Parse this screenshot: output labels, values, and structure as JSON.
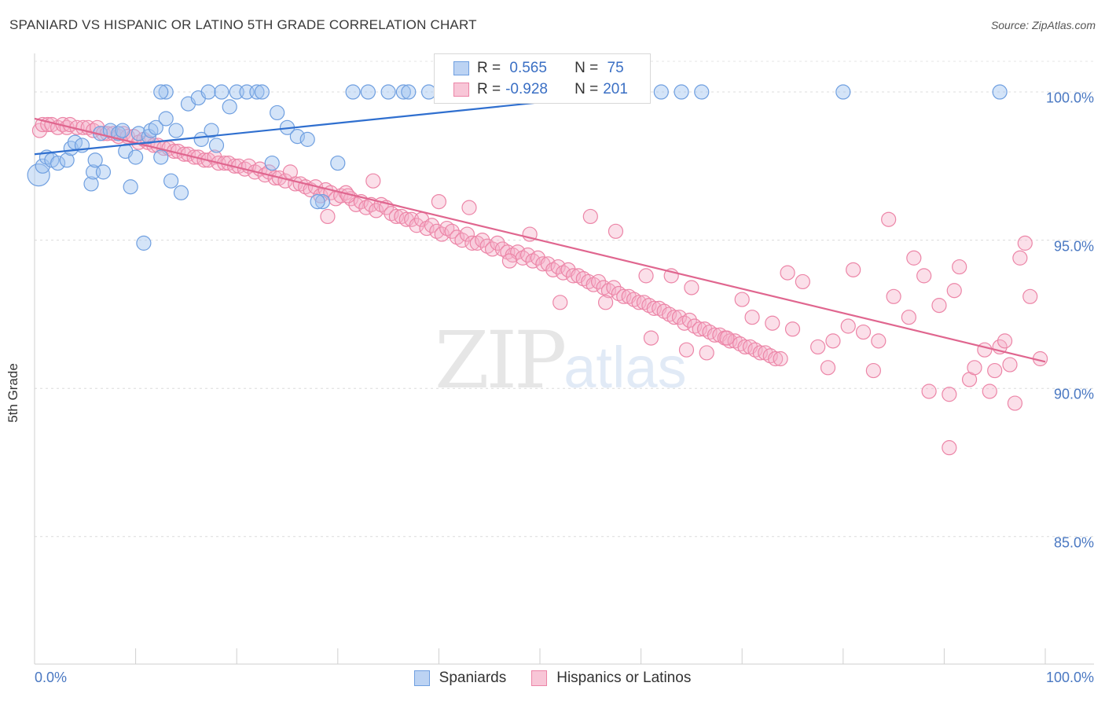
{
  "title": "SPANIARD VS HISPANIC OR LATINO 5TH GRADE CORRELATION CHART",
  "source": "Source: ZipAtlas.com",
  "watermark": {
    "part1": "ZIP",
    "part2": "atlas"
  },
  "legend_top": {
    "rows": [
      {
        "r_label": "R =",
        "r_value": " 0.565",
        "n_label": "N =",
        "n_value": " 75",
        "color": "#6f9fe0",
        "fill": "#bcd3f3"
      },
      {
        "r_label": "R =",
        "r_value": "-0.928",
        "n_label": "N =",
        "n_value": "201",
        "color": "#ec85a7",
        "fill": "#f8c6d7"
      }
    ]
  },
  "legend_bottom": {
    "series1": "Spaniards",
    "series2": "Hispanics or Latinos"
  },
  "chart_data": {
    "type": "scatter",
    "title": "SPANIARD VS HISPANIC OR LATINO 5TH GRADE CORRELATION CHART",
    "xlabel": "",
    "ylabel": "5th Grade",
    "xlim": [
      0,
      100
    ],
    "ylim": [
      80.7,
      101.3
    ],
    "x_ticks_labels": [
      "0.0%",
      "100.0%"
    ],
    "y_ticks": [
      85,
      90,
      95,
      100
    ],
    "y_ticks_labels": [
      "85.0%",
      "90.0%",
      "95.0%",
      "100.0%"
    ],
    "grid": "horizontal dashed",
    "series": [
      {
        "name": "Spaniards",
        "color": "#6f9fe0",
        "fill": "rgba(160,195,240,0.45)",
        "trend": {
          "x": [
            0,
            60
          ],
          "y": [
            97.9,
            100.0
          ]
        },
        "points": [
          [
            0.4,
            97.2,
            14
          ],
          [
            0.8,
            97.5,
            9
          ],
          [
            1.2,
            97.8,
            9
          ],
          [
            1.7,
            97.7,
            9
          ],
          [
            2.3,
            97.6,
            9
          ],
          [
            3.2,
            97.7,
            9
          ],
          [
            3.6,
            98.1,
            9
          ],
          [
            4.0,
            98.3,
            9
          ],
          [
            4.7,
            98.2,
            9
          ],
          [
            5.6,
            96.9,
            9
          ],
          [
            5.8,
            97.3,
            9
          ],
          [
            6.0,
            97.7,
            9
          ],
          [
            6.8,
            97.3,
            9
          ],
          [
            6.5,
            98.6,
            9
          ],
          [
            7.5,
            98.7,
            9
          ],
          [
            8.3,
            98.6,
            9
          ],
          [
            8.7,
            98.7,
            9
          ],
          [
            9.0,
            98.0,
            9
          ],
          [
            9.5,
            96.8,
            9
          ],
          [
            10.0,
            97.8,
            9
          ],
          [
            10.3,
            98.6,
            9
          ],
          [
            10.8,
            94.9,
            9
          ],
          [
            11.3,
            98.5,
            9
          ],
          [
            11.5,
            98.7,
            9
          ],
          [
            12.0,
            98.8,
            9
          ],
          [
            12.5,
            97.8,
            9
          ],
          [
            13.0,
            99.1,
            9
          ],
          [
            13.5,
            97.0,
            9
          ],
          [
            14.0,
            98.7,
            9
          ],
          [
            14.5,
            96.6,
            9
          ],
          [
            16.5,
            98.4,
            9
          ],
          [
            17.5,
            98.7,
            9
          ],
          [
            18.0,
            98.2,
            9
          ],
          [
            15.2,
            99.6,
            9
          ],
          [
            16.2,
            99.8,
            9
          ],
          [
            17.2,
            100.0,
            9
          ],
          [
            19.3,
            99.5,
            9
          ],
          [
            20.0,
            100.0,
            9
          ],
          [
            21.0,
            100.0,
            9
          ],
          [
            22.0,
            100.0,
            9
          ],
          [
            23.5,
            97.6,
            9
          ],
          [
            24.0,
            99.3,
            9
          ],
          [
            25.0,
            98.8,
            9
          ],
          [
            26.0,
            98.5,
            9
          ],
          [
            27.0,
            98.4,
            9
          ],
          [
            28.5,
            96.3,
            9
          ],
          [
            30.0,
            97.6,
            9
          ],
          [
            31.5,
            100.0,
            9
          ],
          [
            33.0,
            100.0,
            9
          ],
          [
            35.0,
            100.0,
            9
          ],
          [
            36.5,
            100.0,
            9
          ],
          [
            37.0,
            100.0,
            9
          ],
          [
            39.0,
            100.0,
            9
          ],
          [
            42.0,
            100.0,
            9
          ],
          [
            45.0,
            100.0,
            9
          ],
          [
            47.0,
            100.0,
            9
          ],
          [
            49.0,
            100.0,
            9
          ],
          [
            50.0,
            100.0,
            9
          ],
          [
            51.0,
            100.0,
            9
          ],
          [
            52.5,
            100.0,
            9
          ],
          [
            54.5,
            100.0,
            9
          ],
          [
            56.0,
            100.0,
            9
          ],
          [
            57.0,
            99.9,
            9
          ],
          [
            58.0,
            100.0,
            9
          ],
          [
            60.0,
            100.0,
            9
          ],
          [
            62.0,
            100.0,
            9
          ],
          [
            64.0,
            100.0,
            9
          ],
          [
            66.0,
            100.0,
            9
          ],
          [
            95.5,
            100.0,
            9
          ],
          [
            80.0,
            100.0,
            9
          ],
          [
            28.0,
            96.3,
            9
          ],
          [
            13.0,
            100.0,
            9
          ],
          [
            12.5,
            100.0,
            9
          ],
          [
            18.5,
            100.0,
            9
          ],
          [
            22.5,
            100.0,
            9
          ]
        ]
      },
      {
        "name": "Hispanics or Latinos",
        "color": "#ec85a7",
        "fill": "rgba(245,175,200,0.40)",
        "trend": {
          "x": [
            0,
            100
          ],
          "y": [
            99.1,
            90.9
          ]
        },
        "points": [
          [
            0.5,
            98.7
          ],
          [
            0.8,
            98.9
          ],
          [
            1.3,
            98.9
          ],
          [
            1.7,
            98.9
          ],
          [
            2.3,
            98.8
          ],
          [
            2.8,
            98.9
          ],
          [
            3.2,
            98.8
          ],
          [
            3.5,
            98.9
          ],
          [
            4.2,
            98.8
          ],
          [
            4.8,
            98.8
          ],
          [
            5.3,
            98.8
          ],
          [
            5.8,
            98.7
          ],
          [
            6.2,
            98.8
          ],
          [
            6.8,
            98.6
          ],
          [
            7.2,
            98.6
          ],
          [
            7.8,
            98.6
          ],
          [
            8.3,
            98.5
          ],
          [
            8.8,
            98.6
          ],
          [
            9.2,
            98.5
          ],
          [
            9.8,
            98.5
          ],
          [
            10.3,
            98.3
          ],
          [
            10.8,
            98.4
          ],
          [
            11.2,
            98.3
          ],
          [
            11.8,
            98.2
          ],
          [
            12.2,
            98.2
          ],
          [
            12.8,
            98.1
          ],
          [
            13.3,
            98.1
          ],
          [
            13.8,
            98.0
          ],
          [
            14.2,
            98.0
          ],
          [
            14.8,
            97.9
          ],
          [
            15.2,
            97.9
          ],
          [
            15.8,
            97.8
          ],
          [
            16.2,
            97.8
          ],
          [
            16.8,
            97.7
          ],
          [
            17.2,
            97.7
          ],
          [
            17.8,
            97.8
          ],
          [
            18.2,
            97.6
          ],
          [
            18.8,
            97.6
          ],
          [
            19.2,
            97.6
          ],
          [
            19.8,
            97.5
          ],
          [
            20.2,
            97.5
          ],
          [
            20.8,
            97.4
          ],
          [
            21.2,
            97.5
          ],
          [
            21.8,
            97.3
          ],
          [
            22.3,
            97.4
          ],
          [
            22.8,
            97.2
          ],
          [
            23.2,
            97.3
          ],
          [
            23.8,
            97.1
          ],
          [
            24.2,
            97.1
          ],
          [
            24.8,
            97.0
          ],
          [
            25.3,
            97.3
          ],
          [
            25.8,
            96.9
          ],
          [
            26.3,
            96.9
          ],
          [
            26.8,
            96.8
          ],
          [
            27.3,
            96.7
          ],
          [
            27.8,
            96.8
          ],
          [
            28.3,
            96.5
          ],
          [
            28.8,
            96.7
          ],
          [
            29.3,
            96.6
          ],
          [
            29.8,
            96.4
          ],
          [
            30.3,
            96.5
          ],
          [
            30.8,
            96.6
          ],
          [
            31.3,
            96.4
          ],
          [
            31.8,
            96.2
          ],
          [
            32.3,
            96.3
          ],
          [
            32.8,
            96.1
          ],
          [
            33.3,
            96.2
          ],
          [
            33.8,
            96.0
          ],
          [
            34.3,
            96.2
          ],
          [
            34.8,
            96.1
          ],
          [
            35.3,
            95.9
          ],
          [
            35.8,
            95.8
          ],
          [
            36.3,
            95.8
          ],
          [
            36.8,
            95.7
          ],
          [
            37.3,
            95.7
          ],
          [
            37.8,
            95.5
          ],
          [
            38.3,
            95.7
          ],
          [
            38.8,
            95.4
          ],
          [
            39.3,
            95.5
          ],
          [
            39.8,
            95.3
          ],
          [
            40.3,
            95.2
          ],
          [
            40.8,
            95.4
          ],
          [
            41.3,
            95.3
          ],
          [
            41.8,
            95.1
          ],
          [
            42.3,
            95.0
          ],
          [
            42.8,
            95.2
          ],
          [
            43.3,
            94.9
          ],
          [
            43.8,
            94.9
          ],
          [
            44.3,
            95.0
          ],
          [
            44.8,
            94.8
          ],
          [
            45.3,
            94.7
          ],
          [
            45.8,
            94.9
          ],
          [
            46.3,
            94.7
          ],
          [
            46.8,
            94.6
          ],
          [
            47.3,
            94.5
          ],
          [
            47.8,
            94.6
          ],
          [
            48.3,
            94.4
          ],
          [
            48.8,
            94.5
          ],
          [
            49.3,
            94.3
          ],
          [
            49.8,
            94.4
          ],
          [
            50.3,
            94.2
          ],
          [
            50.8,
            94.2
          ],
          [
            51.3,
            94.0
          ],
          [
            51.8,
            94.1
          ],
          [
            52.3,
            93.9
          ],
          [
            52.8,
            94.0
          ],
          [
            53.3,
            93.8
          ],
          [
            53.8,
            93.8
          ],
          [
            54.3,
            93.7
          ],
          [
            54.8,
            93.6
          ],
          [
            55.3,
            93.5
          ],
          [
            55.8,
            93.6
          ],
          [
            56.3,
            93.4
          ],
          [
            56.8,
            93.3
          ],
          [
            57.3,
            93.4
          ],
          [
            57.8,
            93.2
          ],
          [
            58.3,
            93.1
          ],
          [
            58.8,
            93.1
          ],
          [
            59.3,
            93.0
          ],
          [
            59.8,
            92.9
          ],
          [
            60.3,
            92.9
          ],
          [
            60.8,
            92.8
          ],
          [
            61.3,
            92.7
          ],
          [
            61.8,
            92.7
          ],
          [
            62.3,
            92.6
          ],
          [
            62.8,
            92.5
          ],
          [
            63.3,
            92.4
          ],
          [
            63.8,
            92.4
          ],
          [
            64.3,
            92.2
          ],
          [
            64.8,
            92.3
          ],
          [
            65.3,
            92.1
          ],
          [
            65.8,
            92.0
          ],
          [
            66.3,
            92.0
          ],
          [
            66.8,
            91.9
          ],
          [
            67.3,
            91.8
          ],
          [
            67.8,
            91.8
          ],
          [
            68.3,
            91.7
          ],
          [
            68.8,
            91.6
          ],
          [
            69.3,
            91.6
          ],
          [
            69.8,
            91.5
          ],
          [
            70.3,
            91.4
          ],
          [
            70.8,
            91.4
          ],
          [
            71.3,
            91.3
          ],
          [
            71.8,
            91.2
          ],
          [
            72.3,
            91.2
          ],
          [
            72.8,
            91.1
          ],
          [
            73.3,
            91.0
          ],
          [
            73.8,
            91.0
          ],
          [
            29.0,
            95.8
          ],
          [
            31.0,
            96.5
          ],
          [
            33.5,
            97.0
          ],
          [
            40.0,
            96.3
          ],
          [
            43.0,
            96.1
          ],
          [
            47.0,
            94.3
          ],
          [
            49.0,
            95.2
          ],
          [
            52.0,
            92.9
          ],
          [
            55.0,
            95.8
          ],
          [
            57.5,
            95.3
          ],
          [
            60.5,
            93.8
          ],
          [
            63.0,
            93.8
          ],
          [
            65.0,
            93.4
          ],
          [
            66.5,
            91.2
          ],
          [
            68.5,
            91.7
          ],
          [
            71.0,
            92.4
          ],
          [
            73.0,
            92.2
          ],
          [
            74.5,
            93.9
          ],
          [
            76.0,
            93.6
          ],
          [
            77.5,
            91.4
          ],
          [
            79.0,
            91.6
          ],
          [
            80.5,
            92.1
          ],
          [
            82.0,
            91.9
          ],
          [
            83.5,
            91.6
          ],
          [
            85.0,
            93.1
          ],
          [
            86.5,
            92.4
          ],
          [
            88.0,
            93.8
          ],
          [
            89.5,
            92.8
          ],
          [
            91.0,
            93.3
          ],
          [
            92.5,
            90.3
          ],
          [
            94.0,
            91.3
          ],
          [
            95.5,
            91.4
          ],
          [
            97.0,
            89.5
          ],
          [
            98.5,
            93.1
          ],
          [
            99.5,
            91.0
          ],
          [
            98.0,
            94.9
          ],
          [
            97.5,
            94.4
          ],
          [
            88.5,
            89.9
          ],
          [
            90.5,
            89.8
          ],
          [
            94.5,
            89.9
          ],
          [
            84.5,
            95.7
          ],
          [
            87.0,
            94.4
          ],
          [
            91.5,
            94.1
          ],
          [
            93.0,
            90.7
          ],
          [
            95.0,
            90.6
          ],
          [
            96.5,
            90.8
          ],
          [
            81.0,
            94.0
          ],
          [
            78.5,
            90.7
          ],
          [
            90.5,
            88.0
          ],
          [
            75.0,
            92.0
          ],
          [
            70.0,
            93.0
          ],
          [
            61.0,
            91.7
          ],
          [
            56.5,
            92.9
          ],
          [
            64.5,
            91.3
          ],
          [
            83.0,
            90.6
          ],
          [
            96.0,
            91.6
          ]
        ]
      }
    ]
  }
}
